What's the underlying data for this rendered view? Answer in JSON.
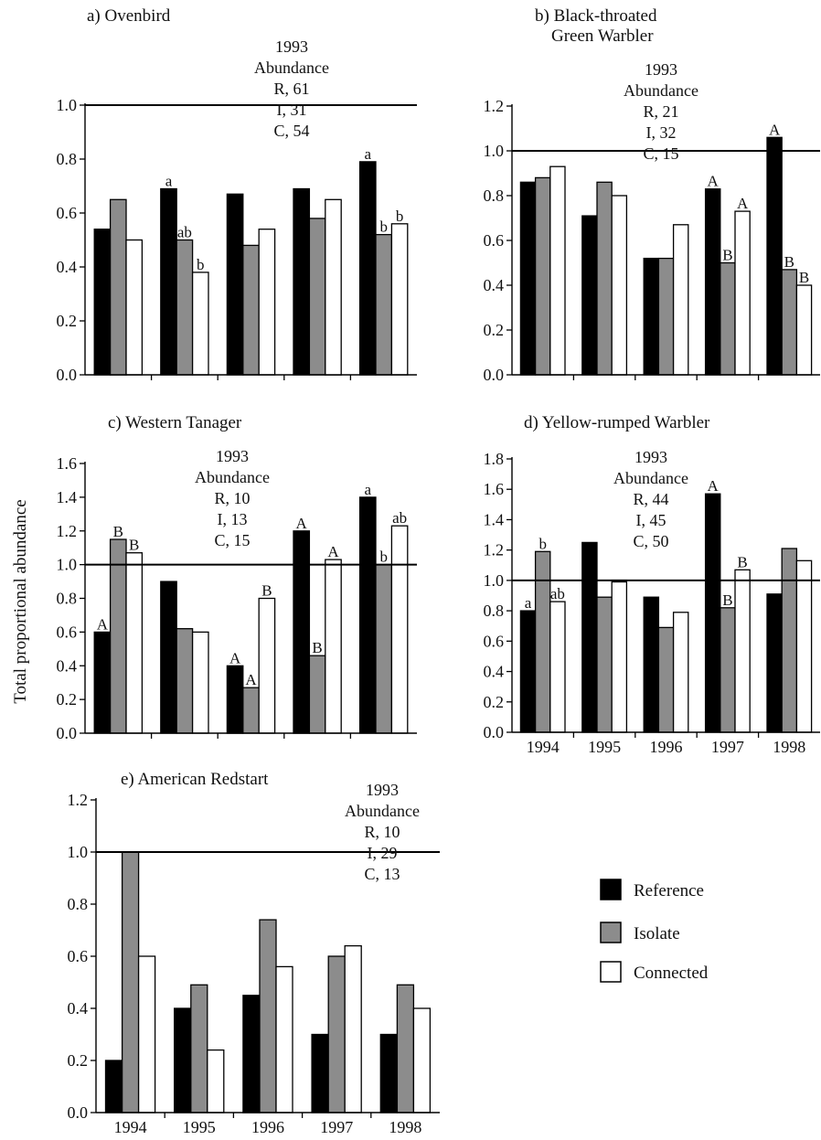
{
  "ylabel": "Total proportional abundance",
  "legend": [
    {
      "label": "Reference",
      "color": "#000000"
    },
    {
      "label": "Isolate",
      "color": "#8c8c8c"
    },
    {
      "label": "Connected",
      "color": "#ffffff"
    }
  ],
  "chart_data": [
    {
      "type": "bar",
      "title": "a) Ovenbird",
      "categories": [
        "1994",
        "1995",
        "1996",
        "1997",
        "1998"
      ],
      "series": [
        {
          "name": "Reference",
          "values": [
            0.54,
            0.69,
            0.67,
            0.69,
            0.79
          ],
          "letters": [
            "",
            "a",
            "",
            "",
            "a"
          ]
        },
        {
          "name": "Isolate",
          "values": [
            0.65,
            0.5,
            0.48,
            0.58,
            0.52
          ],
          "letters": [
            "",
            "ab",
            "",
            "",
            "b"
          ]
        },
        {
          "name": "Connected",
          "values": [
            0.5,
            0.38,
            0.54,
            0.65,
            0.56
          ],
          "letters": [
            "",
            "b",
            "",
            "",
            "b"
          ]
        }
      ],
      "ylim": [
        0,
        1.0
      ],
      "yticks": [
        "0.0",
        "0.2",
        "0.4",
        "0.6",
        "0.8",
        "1.0"
      ],
      "reference_line": 1.0,
      "annotation": [
        "1993",
        "Abundance",
        "R, 61",
        "I, 31",
        "C, 54"
      ],
      "show_xticks": false
    },
    {
      "type": "bar",
      "title": [
        "b) Black-throated",
        "Green Warbler"
      ],
      "categories": [
        "1994",
        "1995",
        "1996",
        "1997",
        "1998"
      ],
      "series": [
        {
          "name": "Reference",
          "values": [
            0.86,
            0.71,
            0.52,
            0.83,
            1.06
          ],
          "letters": [
            "",
            "",
            "",
            "A",
            "A"
          ]
        },
        {
          "name": "Isolate",
          "values": [
            0.88,
            0.86,
            0.52,
            0.5,
            0.47
          ],
          "letters": [
            "",
            "",
            "",
            "B",
            "B"
          ]
        },
        {
          "name": "Connected",
          "values": [
            0.93,
            0.8,
            0.67,
            0.73,
            0.4
          ],
          "letters": [
            "",
            "",
            "",
            "A",
            "B"
          ]
        }
      ],
      "ylim": [
        0,
        1.2
      ],
      "yticks": [
        "0.0",
        "0.2",
        "0.4",
        "0.6",
        "0.8",
        "1.0",
        "1.2"
      ],
      "reference_line": 1.0,
      "annotation": [
        "1993",
        "Abundance",
        "R, 21",
        "I, 32",
        "C, 15"
      ],
      "show_xticks": false
    },
    {
      "type": "bar",
      "title": "c) Western Tanager",
      "categories": [
        "1994",
        "1995",
        "1996",
        "1997",
        "1998"
      ],
      "series": [
        {
          "name": "Reference",
          "values": [
            0.6,
            0.9,
            0.4,
            1.2,
            1.4
          ],
          "letters": [
            "A",
            "",
            "A",
            "A",
            "a"
          ]
        },
        {
          "name": "Isolate",
          "values": [
            1.15,
            0.62,
            0.27,
            0.46,
            1.0
          ],
          "letters": [
            "B",
            "",
            "A",
            "B",
            "b"
          ]
        },
        {
          "name": "Connected",
          "values": [
            1.07,
            0.6,
            0.8,
            1.03,
            1.23
          ],
          "letters": [
            "B",
            "",
            "B",
            "A",
            "ab"
          ]
        }
      ],
      "ylim": [
        0,
        1.6
      ],
      "yticks": [
        "0.0",
        "0.2",
        "0.4",
        "0.6",
        "0.8",
        "1.0",
        "1.2",
        "1.4",
        "1.6"
      ],
      "reference_line": 1.0,
      "annotation": [
        "1993",
        "Abundance",
        "R, 10",
        "I, 13",
        "C, 15"
      ],
      "show_xticks": false
    },
    {
      "type": "bar",
      "title": "d) Yellow-rumped Warbler",
      "categories": [
        "1994",
        "1995",
        "1996",
        "1997",
        "1998"
      ],
      "series": [
        {
          "name": "Reference",
          "values": [
            0.8,
            1.25,
            0.89,
            1.57,
            0.91
          ],
          "letters": [
            "a",
            "",
            "",
            "A",
            ""
          ]
        },
        {
          "name": "Isolate",
          "values": [
            1.19,
            0.89,
            0.69,
            0.82,
            1.21
          ],
          "letters": [
            "b",
            "",
            "",
            "B",
            ""
          ]
        },
        {
          "name": "Connected",
          "values": [
            0.86,
            0.99,
            0.79,
            1.07,
            1.13
          ],
          "letters": [
            "ab",
            "",
            "",
            "B",
            ""
          ]
        }
      ],
      "ylim": [
        0,
        1.8
      ],
      "yticks": [
        "0.0",
        "0.2",
        "0.4",
        "0.6",
        "0.8",
        "1.0",
        "1.2",
        "1.4",
        "1.6",
        "1.8"
      ],
      "reference_line": 1.0,
      "annotation": [
        "1993",
        "Abundance",
        "R, 44",
        "I, 45",
        "C, 50"
      ],
      "show_xticks": true
    },
    {
      "type": "bar",
      "title": "e) American Redstart",
      "categories": [
        "1994",
        "1995",
        "1996",
        "1997",
        "1998"
      ],
      "series": [
        {
          "name": "Reference",
          "values": [
            0.2,
            0.4,
            0.45,
            0.3,
            0.3
          ],
          "letters": [
            "",
            "",
            "",
            "",
            ""
          ]
        },
        {
          "name": "Isolate",
          "values": [
            1.0,
            0.49,
            0.74,
            0.6,
            0.49
          ],
          "letters": [
            "",
            "",
            "",
            "",
            ""
          ]
        },
        {
          "name": "Connected",
          "values": [
            0.6,
            0.24,
            0.56,
            0.64,
            0.4
          ],
          "letters": [
            "",
            "",
            "",
            "",
            ""
          ]
        }
      ],
      "ylim": [
        0,
        1.2
      ],
      "yticks": [
        "0.0",
        "0.2",
        "0.4",
        "0.6",
        "0.8",
        "1.0",
        "1.2"
      ],
      "reference_line": 1.0,
      "annotation": [
        "1993",
        "Abundance",
        "R, 10",
        "I, 29",
        "C, 13"
      ],
      "show_xticks": true
    }
  ]
}
